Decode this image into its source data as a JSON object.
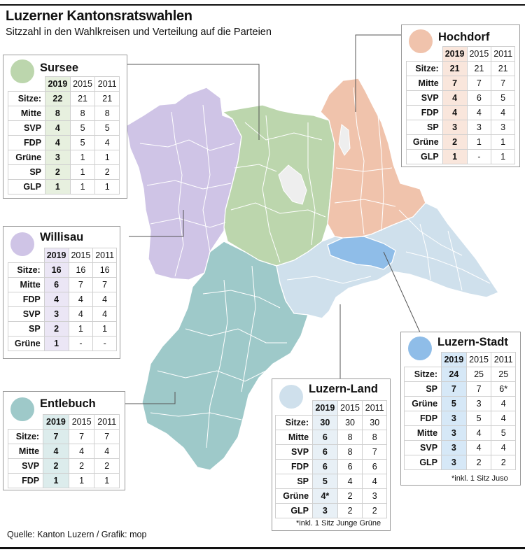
{
  "header": {
    "title": "Luzerner Kantonsratswahlen",
    "subtitle": "Sitzzahl in den Wahlkreisen und Verteilung auf die Parteien"
  },
  "source": "Quelle: Kanton Luzern / Grafik: mop",
  "years": [
    "2019",
    "2015",
    "2011"
  ],
  "districts": [
    {
      "key": "sursee",
      "name": "Sursee",
      "color": "#bcd6ad",
      "highlight": "#e7f0df",
      "rows": [
        {
          "label": "Sitze:",
          "values": [
            "22",
            "21",
            "21"
          ]
        },
        {
          "label": "Mitte",
          "values": [
            "8",
            "8",
            "8"
          ]
        },
        {
          "label": "SVP",
          "values": [
            "4",
            "5",
            "5"
          ]
        },
        {
          "label": "FDP",
          "values": [
            "4",
            "5",
            "4"
          ]
        },
        {
          "label": "Grüne",
          "values": [
            "3",
            "1",
            "1"
          ]
        },
        {
          "label": "SP",
          "values": [
            "2",
            "1",
            "2"
          ]
        },
        {
          "label": "GLP",
          "values": [
            "1",
            "1",
            "1"
          ]
        }
      ]
    },
    {
      "key": "willisau",
      "name": "Willisau",
      "color": "#cfc4e6",
      "highlight": "#ebe6f5",
      "rows": [
        {
          "label": "Sitze:",
          "values": [
            "16",
            "16",
            "16"
          ]
        },
        {
          "label": "Mitte",
          "values": [
            "6",
            "7",
            "7"
          ]
        },
        {
          "label": "FDP",
          "values": [
            "4",
            "4",
            "4"
          ]
        },
        {
          "label": "SVP",
          "values": [
            "3",
            "4",
            "4"
          ]
        },
        {
          "label": "SP",
          "values": [
            "2",
            "1",
            "1"
          ]
        },
        {
          "label": "Grüne",
          "values": [
            "1",
            "-",
            "-"
          ]
        }
      ]
    },
    {
      "key": "entlebuch",
      "name": "Entlebuch",
      "color": "#9ec9c9",
      "highlight": "#dcecec",
      "rows": [
        {
          "label": "Sitze:",
          "values": [
            "7",
            "7",
            "7"
          ]
        },
        {
          "label": "Mitte",
          "values": [
            "4",
            "4",
            "4"
          ]
        },
        {
          "label": "SVP",
          "values": [
            "2",
            "2",
            "2"
          ]
        },
        {
          "label": "FDP",
          "values": [
            "1",
            "1",
            "1"
          ]
        }
      ]
    },
    {
      "key": "hochdorf",
      "name": "Hochdorf",
      "color": "#f0c3ac",
      "highlight": "#f9e6dc",
      "rows": [
        {
          "label": "Sitze:",
          "values": [
            "21",
            "21",
            "21"
          ]
        },
        {
          "label": "Mitte",
          "values": [
            "7",
            "7",
            "7"
          ]
        },
        {
          "label": "SVP",
          "values": [
            "4",
            "6",
            "5"
          ]
        },
        {
          "label": "FDP",
          "values": [
            "4",
            "4",
            "4"
          ]
        },
        {
          "label": "SP",
          "values": [
            "3",
            "3",
            "3"
          ]
        },
        {
          "label": "Grüne",
          "values": [
            "2",
            "1",
            "1"
          ]
        },
        {
          "label": "GLP",
          "values": [
            "1",
            "-",
            "1"
          ]
        }
      ]
    },
    {
      "key": "luzernland",
      "name": "Luzern-Land",
      "color": "#cfe0ec",
      "highlight": "#e8f0f6",
      "rows": [
        {
          "label": "Sitze:",
          "values": [
            "30",
            "30",
            "30"
          ]
        },
        {
          "label": "Mitte",
          "values": [
            "6",
            "8",
            "8"
          ]
        },
        {
          "label": "SVP",
          "values": [
            "6",
            "8",
            "7"
          ]
        },
        {
          "label": "FDP",
          "values": [
            "6",
            "6",
            "6"
          ]
        },
        {
          "label": "SP",
          "values": [
            "5",
            "4",
            "4"
          ]
        },
        {
          "label": "Grüne",
          "values": [
            "4*",
            "2",
            "3"
          ]
        },
        {
          "label": "GLP",
          "values": [
            "3",
            "2",
            "2"
          ]
        }
      ],
      "note": "*inkl. 1 Sitz Junge Grüne"
    },
    {
      "key": "luzernstadt",
      "name": "Luzern-Stadt",
      "color": "#8fbde8",
      "highlight": "#d6e8f7",
      "rows": [
        {
          "label": "Sitze:",
          "values": [
            "24",
            "25",
            "25"
          ]
        },
        {
          "label": "SP",
          "values": [
            "7",
            "7",
            "6*"
          ]
        },
        {
          "label": "Grüne",
          "values": [
            "5",
            "3",
            "4"
          ]
        },
        {
          "label": "FDP",
          "values": [
            "3",
            "5",
            "4"
          ]
        },
        {
          "label": "Mitte",
          "values": [
            "3",
            "4",
            "5"
          ]
        },
        {
          "label": "SVP",
          "values": [
            "3",
            "4",
            "4"
          ]
        },
        {
          "label": "GLP",
          "values": [
            "3",
            "2",
            "2"
          ]
        }
      ],
      "note": "*inkl. 1 Sitz Juso"
    }
  ]
}
